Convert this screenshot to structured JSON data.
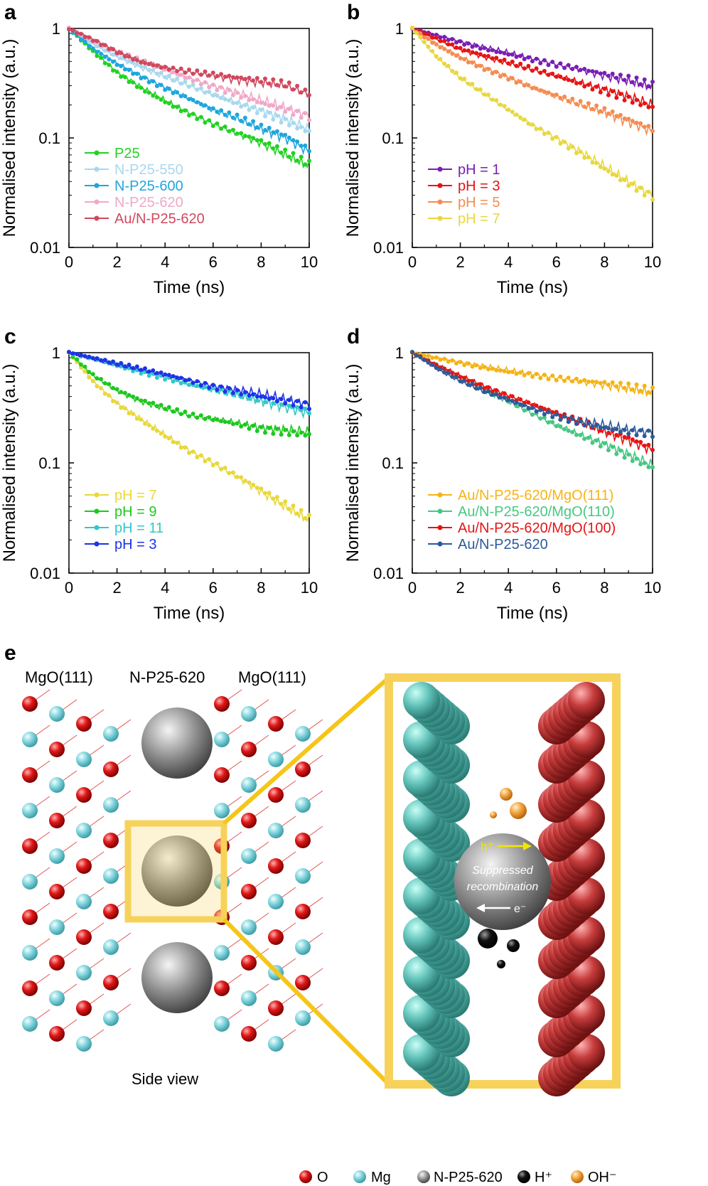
{
  "colors": {
    "O": "#e01818",
    "Mg": "#7fd4dc",
    "particle": "#8c8c8c",
    "H": "#111111",
    "OH": "#f2a33a",
    "box": "#f7d25a",
    "slab_left": "#63c3ba",
    "slab_right": "#c73c3c",
    "label_h": "#f2e600"
  },
  "chart_data": [
    {
      "panel": "a",
      "type": "line",
      "yscale": "log",
      "xlabel": "Time (ns)",
      "ylabel": "Normalised intensity (a.u.)",
      "xlim": [
        0,
        10
      ],
      "ylim": [
        0.01,
        1
      ],
      "xticks": [
        "0",
        "2",
        "4",
        "6",
        "8",
        "10"
      ],
      "yticks": [
        "1",
        "0.1",
        "0.01"
      ],
      "legend_position": "bottom-left",
      "series": [
        {
          "name": "P25",
          "color": "#22d222",
          "x": [
            0,
            1,
            2,
            3,
            4,
            5,
            6,
            7,
            8,
            9,
            10
          ],
          "y": [
            1.0,
            0.62,
            0.4,
            0.29,
            0.22,
            0.17,
            0.135,
            0.11,
            0.09,
            0.07,
            0.055
          ]
        },
        {
          "name": "N-P25-550",
          "color": "#a8d8ee",
          "x": [
            0,
            1,
            2,
            3,
            4,
            5,
            6,
            7,
            8,
            9,
            10
          ],
          "y": [
            1.0,
            0.72,
            0.55,
            0.44,
            0.36,
            0.3,
            0.25,
            0.21,
            0.18,
            0.15,
            0.12
          ]
        },
        {
          "name": "N-P25-600",
          "color": "#1ea6dc",
          "x": [
            0,
            1,
            2,
            3,
            4,
            5,
            6,
            7,
            8,
            9,
            10
          ],
          "y": [
            1.0,
            0.66,
            0.48,
            0.37,
            0.29,
            0.23,
            0.18,
            0.15,
            0.12,
            0.1,
            0.075
          ]
        },
        {
          "name": "N-P25-620",
          "color": "#f0a8c8",
          "x": [
            0,
            1,
            2,
            3,
            4,
            5,
            6,
            7,
            8,
            9,
            10
          ],
          "y": [
            1.0,
            0.76,
            0.6,
            0.5,
            0.42,
            0.35,
            0.3,
            0.26,
            0.22,
            0.19,
            0.16
          ]
        },
        {
          "name": "Au/N-P25-620",
          "color": "#d0485e",
          "x": [
            0,
            1,
            2,
            3,
            4,
            5,
            6,
            7,
            8,
            9,
            10
          ],
          "y": [
            1.0,
            0.8,
            0.62,
            0.5,
            0.44,
            0.4,
            0.37,
            0.34,
            0.32,
            0.3,
            0.25
          ]
        }
      ]
    },
    {
      "panel": "b",
      "type": "line",
      "yscale": "log",
      "xlabel": "Time (ns)",
      "ylabel": "Normalised intensity (a.u.)",
      "xlim": [
        0,
        10
      ],
      "ylim": [
        0.01,
        1
      ],
      "xticks": [
        "0",
        "2",
        "4",
        "6",
        "8",
        "10"
      ],
      "yticks": [
        "1",
        "0.1",
        "0.01"
      ],
      "legend_position": "bottom-left",
      "series": [
        {
          "name": "pH = 1",
          "color": "#7a1eb4",
          "x": [
            0,
            1,
            2,
            3,
            4,
            5,
            6,
            7,
            8,
            9,
            10
          ],
          "y": [
            1.0,
            0.87,
            0.76,
            0.67,
            0.6,
            0.53,
            0.47,
            0.42,
            0.37,
            0.33,
            0.29
          ]
        },
        {
          "name": "pH = 3",
          "color": "#e61414",
          "x": [
            0,
            1,
            2,
            3,
            4,
            5,
            6,
            7,
            8,
            9,
            10
          ],
          "y": [
            1.0,
            0.8,
            0.64,
            0.55,
            0.48,
            0.42,
            0.37,
            0.32,
            0.28,
            0.24,
            0.2
          ]
        },
        {
          "name": "pH = 5",
          "color": "#f58c50",
          "x": [
            0,
            1,
            2,
            3,
            4,
            5,
            6,
            7,
            8,
            9,
            10
          ],
          "y": [
            1.0,
            0.72,
            0.55,
            0.44,
            0.36,
            0.29,
            0.24,
            0.2,
            0.17,
            0.14,
            0.115
          ]
        },
        {
          "name": "pH = 7",
          "color": "#e8d83c",
          "x": [
            0,
            1,
            2,
            3,
            4,
            5,
            6,
            7,
            8,
            9,
            10
          ],
          "y": [
            1.0,
            0.55,
            0.35,
            0.25,
            0.18,
            0.13,
            0.1,
            0.075,
            0.055,
            0.04,
            0.03
          ]
        }
      ]
    },
    {
      "panel": "c",
      "type": "line",
      "yscale": "log",
      "xlabel": "Time (ns)",
      "ylabel": "Normalised intensity (a.u.)",
      "xlim": [
        0,
        10
      ],
      "ylim": [
        0.01,
        1
      ],
      "xticks": [
        "0",
        "2",
        "4",
        "6",
        "8",
        "10"
      ],
      "yticks": [
        "1",
        "0.1",
        "0.01"
      ],
      "legend_position": "bottom-left",
      "series": [
        {
          "name": "pH = 7",
          "color": "#e8d83c",
          "x": [
            0,
            1,
            2,
            3,
            4,
            5,
            6,
            7,
            8,
            9,
            10
          ],
          "y": [
            1.0,
            0.55,
            0.35,
            0.25,
            0.18,
            0.13,
            0.1,
            0.075,
            0.055,
            0.04,
            0.03
          ]
        },
        {
          "name": "pH = 9",
          "color": "#1ec81e",
          "x": [
            0,
            1,
            2,
            3,
            4,
            5,
            6,
            7,
            8,
            9,
            10
          ],
          "y": [
            1.0,
            0.62,
            0.45,
            0.36,
            0.31,
            0.27,
            0.25,
            0.23,
            0.21,
            0.2,
            0.19
          ]
        },
        {
          "name": "pH = 11",
          "color": "#32c8c8",
          "x": [
            0,
            1,
            2,
            3,
            4,
            5,
            6,
            7,
            8,
            9,
            10
          ],
          "y": [
            1.0,
            0.9,
            0.78,
            0.68,
            0.6,
            0.52,
            0.46,
            0.41,
            0.36,
            0.32,
            0.28
          ]
        },
        {
          "name": "pH = 3",
          "color": "#1e32e6",
          "x": [
            0,
            1,
            2,
            3,
            4,
            5,
            6,
            7,
            8,
            9,
            10
          ],
          "y": [
            1.0,
            0.88,
            0.78,
            0.7,
            0.63,
            0.56,
            0.5,
            0.46,
            0.42,
            0.38,
            0.34
          ]
        }
      ]
    },
    {
      "panel": "d",
      "type": "line",
      "yscale": "log",
      "xlabel": "Time (ns)",
      "ylabel": "Normalised intensity (a.u.)",
      "xlim": [
        0,
        10
      ],
      "ylim": [
        0.01,
        1
      ],
      "xticks": [
        "0",
        "2",
        "4",
        "6",
        "8",
        "10"
      ],
      "yticks": [
        "1",
        "0.1",
        "0.01"
      ],
      "legend_position": "bottom-left",
      "series": [
        {
          "name": "Au/N-P25-620/MgO(111)",
          "color": "#f5b414",
          "x": [
            0,
            1,
            2,
            3,
            4,
            5,
            6,
            7,
            8,
            9,
            10
          ],
          "y": [
            1.0,
            0.9,
            0.82,
            0.75,
            0.69,
            0.64,
            0.59,
            0.55,
            0.51,
            0.47,
            0.43
          ]
        },
        {
          "name": "Au/N-P25-620/MgO(110)",
          "color": "#46c882",
          "x": [
            0,
            1,
            2,
            3,
            4,
            5,
            6,
            7,
            8,
            9,
            10
          ],
          "y": [
            1.0,
            0.76,
            0.58,
            0.46,
            0.36,
            0.28,
            0.22,
            0.18,
            0.15,
            0.12,
            0.095
          ]
        },
        {
          "name": "Au/N-P25-620/MgO(100)",
          "color": "#e61414",
          "x": [
            0,
            1,
            2,
            3,
            4,
            5,
            6,
            7,
            8,
            9,
            10
          ],
          "y": [
            1.0,
            0.78,
            0.62,
            0.5,
            0.41,
            0.34,
            0.28,
            0.23,
            0.19,
            0.16,
            0.13
          ]
        },
        {
          "name": "Au/N-P25-620",
          "color": "#2d5a9b",
          "x": [
            0,
            1,
            2,
            3,
            4,
            5,
            6,
            7,
            8,
            9,
            10
          ],
          "y": [
            1.0,
            0.72,
            0.55,
            0.44,
            0.37,
            0.31,
            0.27,
            0.24,
            0.22,
            0.2,
            0.19
          ]
        }
      ]
    }
  ],
  "panel_labels": [
    "a",
    "b",
    "c",
    "d",
    "e"
  ],
  "scheme": {
    "label_left": "MgO(111)",
    "label_center": "N-P25-620",
    "label_right": "MgO(111)",
    "side_view": "Side view",
    "hole_label": "h⁺",
    "electron_label": "e⁻",
    "center_text_1": "Suppressed",
    "center_text_2": "recombination",
    "legend": [
      {
        "label": "O",
        "icon": "o-atom-icon"
      },
      {
        "label": "Mg",
        "icon": "mg-atom-icon"
      },
      {
        "label": "N-P25-620",
        "icon": "particle-icon"
      },
      {
        "label": "H⁺",
        "icon": "h-plus-icon"
      },
      {
        "label": "OH⁻",
        "icon": "oh-minus-icon"
      }
    ]
  }
}
